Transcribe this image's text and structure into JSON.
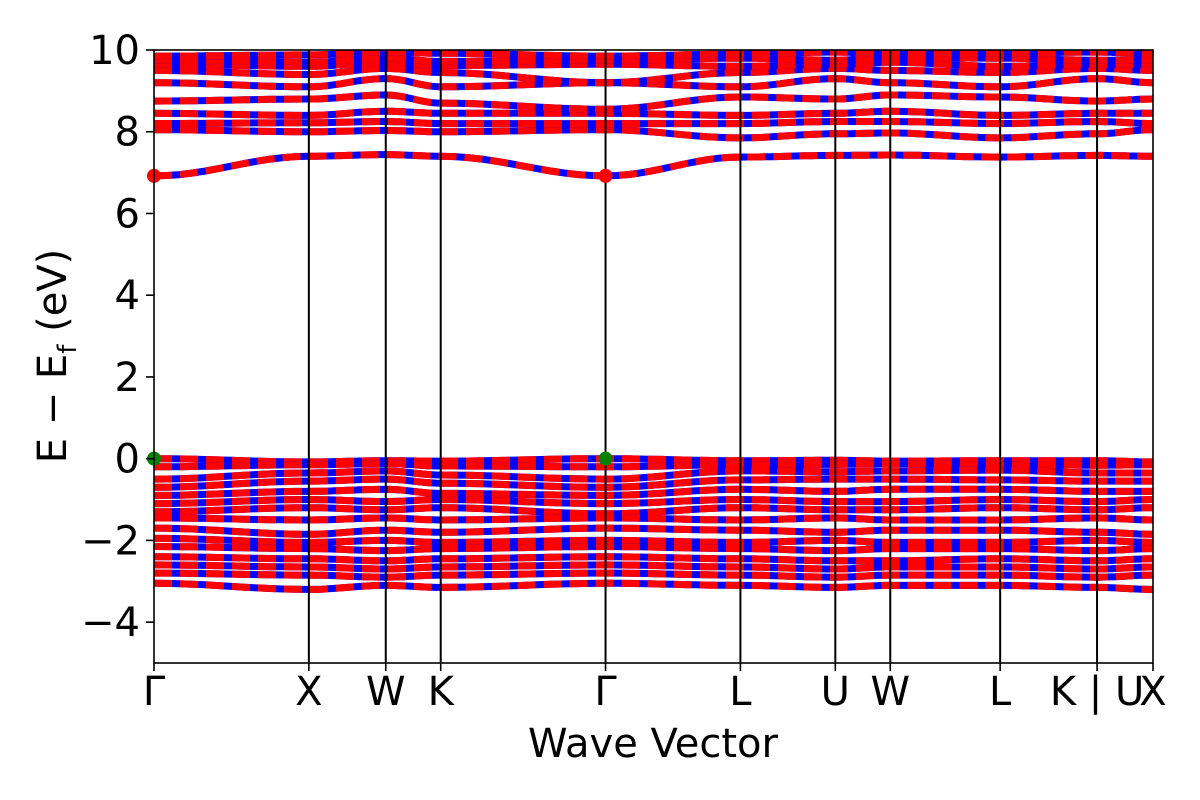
{
  "chart_data": {
    "type": "line",
    "title": "",
    "xlabel": "Wave Vector",
    "ylabel": "E − E",
    "ylabel_subscript": "f",
    "ylabel_unit": " (eV)",
    "ylim": [
      -5,
      10
    ],
    "yticks": [
      -4,
      -2,
      0,
      2,
      4,
      6,
      8,
      10
    ],
    "ytick_labels": [
      "−4",
      "−2",
      "0",
      "2",
      "4",
      "6",
      "8",
      "10"
    ],
    "xlim": [
      0,
      1
    ],
    "kpoints": [
      {
        "label": "Γ",
        "x": 0.0
      },
      {
        "label": "X",
        "x": 0.155
      },
      {
        "label": "W",
        "x": 0.232
      },
      {
        "label": "K",
        "x": 0.287
      },
      {
        "label": "Γ",
        "x": 0.452
      },
      {
        "label": "L",
        "x": 0.587
      },
      {
        "label": "U",
        "x": 0.682
      },
      {
        "label": "W",
        "x": 0.737
      },
      {
        "label": "L",
        "x": 0.847
      },
      {
        "label": "K | U",
        "x": 0.944
      },
      {
        "label": "X",
        "x": 1.0
      }
    ],
    "band_colors": {
      "spin_up": "#0000ff",
      "spin_down": "#ff0000"
    },
    "marker_colors": {
      "vbm": "#008000",
      "cbm": "#ff0000"
    },
    "vbm": [
      {
        "x": 0.0,
        "y": 0.0
      },
      {
        "x": 0.452,
        "y": 0.0
      }
    ],
    "cbm": [
      {
        "x": 0.0,
        "y": 6.92
      },
      {
        "x": 0.452,
        "y": 6.92
      }
    ],
    "conduction_bands": [
      [
        6.92,
        7.4,
        7.44,
        7.4,
        6.92,
        7.38,
        7.42,
        7.43,
        7.38,
        7.42,
        7.4
      ],
      [
        8.05,
        8.0,
        8.03,
        8.0,
        8.05,
        7.85,
        7.95,
        7.97,
        7.85,
        7.95,
        8.05
      ],
      [
        8.2,
        8.22,
        8.25,
        8.2,
        8.2,
        8.2,
        8.25,
        8.25,
        8.2,
        8.25,
        8.2
      ],
      [
        8.45,
        8.4,
        8.5,
        8.45,
        8.45,
        8.4,
        8.45,
        8.5,
        8.4,
        8.45,
        8.45
      ],
      [
        8.75,
        8.8,
        8.9,
        8.7,
        8.55,
        8.85,
        8.8,
        8.9,
        8.85,
        8.75,
        8.8
      ],
      [
        9.2,
        9.1,
        9.3,
        9.1,
        9.2,
        9.1,
        9.3,
        9.2,
        9.1,
        9.3,
        9.2
      ],
      [
        9.5,
        9.4,
        9.55,
        9.45,
        9.2,
        9.45,
        9.55,
        9.5,
        9.45,
        9.55,
        9.5
      ],
      [
        9.65,
        9.6,
        9.7,
        9.62,
        9.65,
        9.6,
        9.65,
        9.7,
        9.6,
        9.65,
        9.65
      ],
      [
        9.75,
        9.7,
        9.8,
        9.72,
        9.75,
        9.8,
        9.75,
        9.82,
        9.8,
        9.75,
        9.75
      ],
      [
        9.85,
        9.88,
        9.95,
        9.92,
        9.85,
        9.9,
        9.95,
        9.9,
        9.92,
        9.95,
        9.9
      ]
    ],
    "valence_bands": [
      [
        0.0,
        -0.08,
        -0.05,
        -0.06,
        0.0,
        -0.05,
        -0.04,
        -0.06,
        -0.05,
        -0.05,
        -0.08
      ],
      [
        -0.2,
        -0.15,
        -0.12,
        -0.18,
        -0.2,
        -0.15,
        -0.14,
        -0.12,
        -0.15,
        -0.16,
        -0.15
      ],
      [
        -0.5,
        -0.35,
        -0.3,
        -0.4,
        -0.5,
        -0.3,
        -0.32,
        -0.3,
        -0.28,
        -0.35,
        -0.35
      ],
      [
        -0.7,
        -0.55,
        -0.5,
        -0.6,
        -0.7,
        -0.52,
        -0.5,
        -0.5,
        -0.52,
        -0.55,
        -0.55
      ],
      [
        -0.9,
        -0.8,
        -0.75,
        -0.85,
        -0.9,
        -0.75,
        -0.8,
        -0.75,
        -0.75,
        -0.8,
        -0.8
      ],
      [
        -1.1,
        -1.0,
        -1.05,
        -1.0,
        -1.1,
        -1.0,
        -1.05,
        -1.05,
        -1.0,
        -1.05,
        -1.0
      ],
      [
        -1.3,
        -1.2,
        -1.25,
        -1.2,
        -1.35,
        -1.2,
        -1.25,
        -1.25,
        -1.2,
        -1.25,
        -1.2
      ],
      [
        -1.45,
        -1.5,
        -1.45,
        -1.5,
        -1.45,
        -1.5,
        -1.45,
        -1.5,
        -1.5,
        -1.45,
        -1.5
      ],
      [
        -1.7,
        -1.85,
        -1.75,
        -1.8,
        -1.7,
        -1.75,
        -1.8,
        -1.75,
        -1.75,
        -1.8,
        -1.85
      ],
      [
        -1.95,
        -2.05,
        -2.0,
        -2.05,
        -2.0,
        -2.05,
        -2.0,
        -2.05,
        -2.05,
        -2.0,
        -2.05
      ],
      [
        -2.15,
        -2.2,
        -2.25,
        -2.2,
        -2.15,
        -2.2,
        -2.25,
        -2.2,
        -2.2,
        -2.25,
        -2.2
      ],
      [
        -2.4,
        -2.45,
        -2.5,
        -2.45,
        -2.4,
        -2.45,
        -2.5,
        -2.5,
        -2.45,
        -2.5,
        -2.45
      ],
      [
        -2.6,
        -2.65,
        -2.7,
        -2.65,
        -2.6,
        -2.65,
        -2.7,
        -2.65,
        -2.65,
        -2.7,
        -2.65
      ],
      [
        -2.8,
        -2.85,
        -2.9,
        -2.85,
        -2.8,
        -2.85,
        -2.9,
        -2.85,
        -2.85,
        -2.9,
        -2.85
      ],
      [
        -3.05,
        -3.2,
        -3.1,
        -3.15,
        -3.05,
        -3.1,
        -3.15,
        -3.1,
        -3.1,
        -3.15,
        -3.2
      ]
    ]
  }
}
